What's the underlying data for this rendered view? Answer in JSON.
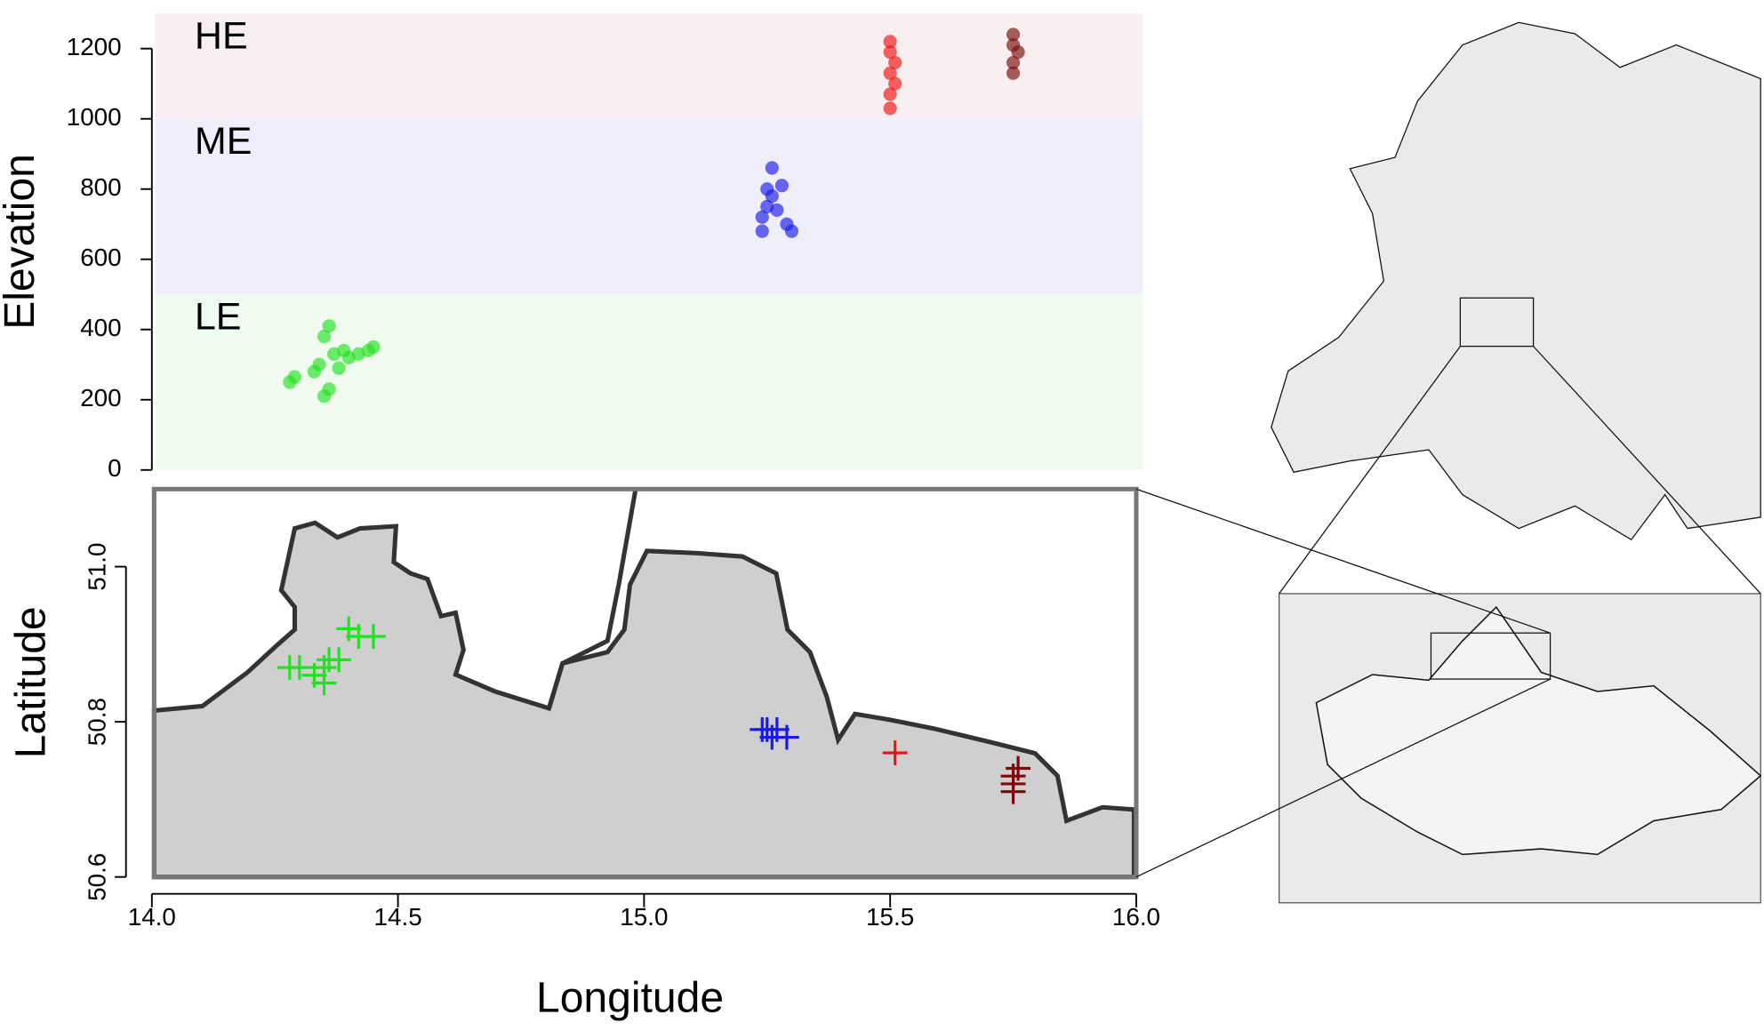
{
  "chart_data": [
    {
      "type": "scatter",
      "y_label": "Elevation",
      "xlim": [
        14.0,
        16.0
      ],
      "ylim": [
        0,
        1300
      ],
      "yticks": [
        0,
        200,
        400,
        600,
        800,
        1000,
        1200
      ],
      "bands": [
        {
          "label": "HE",
          "from": 1000,
          "to": 1300,
          "color": "#f8f0f0"
        },
        {
          "label": "ME",
          "from": 500,
          "to": 1000,
          "color": "#eeeefc"
        },
        {
          "label": "LE",
          "from": 0,
          "to": 500,
          "color": "#effbee"
        }
      ],
      "series": [
        {
          "color": "#22e022",
          "x": [
            14.28,
            14.29,
            14.33,
            14.34,
            14.35,
            14.35,
            14.36,
            14.37,
            14.38,
            14.39,
            14.4,
            14.42,
            14.44,
            14.45,
            14.36
          ],
          "values": [
            250,
            265,
            280,
            300,
            210,
            380,
            410,
            330,
            290,
            340,
            320,
            330,
            340,
            350,
            230
          ]
        },
        {
          "color": "#1a1ae6",
          "x": [
            15.24,
            15.24,
            15.25,
            15.25,
            15.26,
            15.26,
            15.27,
            15.28,
            15.29,
            15.3
          ],
          "values": [
            680,
            720,
            750,
            800,
            860,
            780,
            740,
            810,
            700,
            680
          ]
        },
        {
          "color": "#f01010",
          "x": [
            15.5,
            15.5,
            15.51,
            15.5,
            15.51,
            15.5,
            15.5
          ],
          "values": [
            1030,
            1070,
            1100,
            1130,
            1160,
            1190,
            1220
          ]
        },
        {
          "color": "#7a0a0a",
          "x": [
            15.75,
            15.75,
            15.76,
            15.75,
            15.75
          ],
          "values": [
            1130,
            1160,
            1190,
            1210,
            1240
          ]
        }
      ]
    },
    {
      "type": "map",
      "x_label": "Longitude",
      "y_label": "Latitude",
      "xlim": [
        14.0,
        16.0
      ],
      "ylim": [
        50.6,
        51.1
      ],
      "xticks": [
        {
          "value": 14.0,
          "label": "14.0"
        },
        {
          "value": 14.5,
          "label": "14.5"
        },
        {
          "value": 15.0,
          "label": "15.0"
        },
        {
          "value": 15.5,
          "label": "15.5"
        },
        {
          "value": 16.0,
          "label": "16.0"
        }
      ],
      "yticks": [
        {
          "value": 50.6,
          "label": "50.6"
        },
        {
          "value": 50.8,
          "label": "50.8"
        },
        {
          "value": 51.0,
          "label": "51.0"
        }
      ],
      "series": [
        {
          "color": "#22e022",
          "x": [
            14.28,
            14.3,
            14.33,
            14.35,
            14.36,
            14.38,
            14.4,
            14.42,
            14.45,
            14.35
          ],
          "values": [
            50.87,
            50.87,
            50.86,
            50.85,
            50.88,
            50.88,
            50.92,
            50.91,
            50.91,
            50.87
          ]
        },
        {
          "color": "#1a1ae6",
          "x": [
            15.24,
            15.25,
            15.26,
            15.27,
            15.29
          ],
          "values": [
            50.79,
            50.79,
            50.78,
            50.79,
            50.78
          ]
        },
        {
          "color": "#f01010",
          "x": [
            15.51
          ],
          "values": [
            50.76
          ]
        },
        {
          "color": "#7a0a0a",
          "x": [
            15.75,
            15.75,
            15.76,
            15.75
          ],
          "values": [
            50.73,
            50.72,
            50.74,
            50.71
          ]
        }
      ]
    }
  ]
}
